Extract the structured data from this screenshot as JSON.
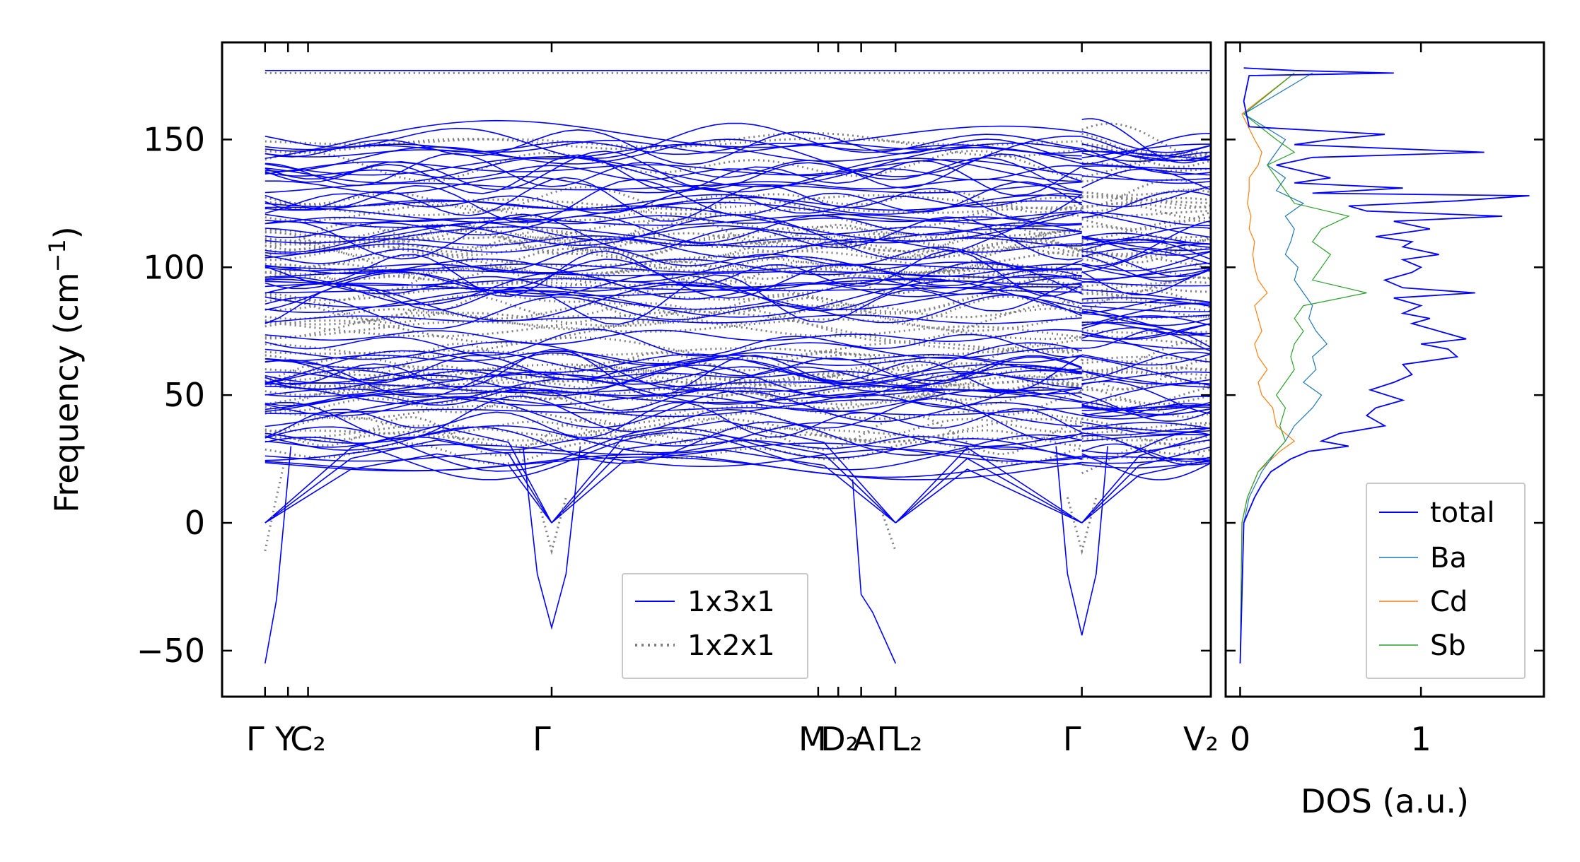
{
  "colors": {
    "band_3x": "#0000ff",
    "band_2x": "#7f7f7f",
    "dos_total": "#0000ff",
    "dos_Ba": "#1f77b4",
    "dos_Cd": "#ff7f0e",
    "dos_Sb": "#2ca02c"
  },
  "chart_data": [
    {
      "type": "line",
      "ylabel": "Frequency (cm⁻¹)",
      "ylim": [
        -68,
        188
      ],
      "yticks": [
        -50,
        0,
        50,
        100,
        150
      ],
      "ytick_labels": [
        "−50",
        "0",
        "50",
        "100",
        "150"
      ],
      "xlim": [
        -0.15,
        3.3
      ],
      "path_segments": [
        [
          0,
          2.85
        ],
        [
          2.85,
          3.3
        ]
      ],
      "high_symmetry_points": [
        {
          "x": 0.0,
          "label": "Γ"
        },
        {
          "x": 0.08,
          "label": "Y"
        },
        {
          "x": 0.15,
          "label": "C₂"
        },
        {
          "x": 1.0,
          "label": "Γ"
        },
        {
          "x": 1.93,
          "label": "M"
        },
        {
          "x": 2.0,
          "label": "D₂"
        },
        {
          "x": 2.08,
          "label": "A"
        },
        {
          "x": 2.2,
          "label": "Γ"
        },
        {
          "x": 2.2,
          "label": "L₂"
        },
        {
          "x": 2.85,
          "label": "Γ"
        },
        {
          "x": 3.3,
          "label": "V₂"
        }
      ],
      "xtick_labels": [
        "Γ",
        "Y",
        "C₂",
        "Γ",
        "M",
        "D₂",
        "A",
        "Γ",
        "L₂",
        "Γ",
        "V₂"
      ],
      "legend": [
        "1x3x1",
        "1x2x1"
      ],
      "series": [
        {
          "name": "1x3x1",
          "style": "solid",
          "acoustic": [
            {
              "x": [
                0,
                0.3,
                0.6,
                0.85,
                1.0
              ],
              "y": [
                0,
                28,
                36,
                30,
                0
              ]
            },
            {
              "x": [
                1.0,
                1.25,
                1.6,
                1.95,
                2.2
              ],
              "y": [
                0,
                32,
                38,
                30,
                0
              ]
            },
            {
              "x": [
                2.2,
                2.45,
                2.85
              ],
              "y": [
                0,
                28,
                0
              ]
            },
            {
              "x": [
                2.85,
                3.05,
                3.3
              ],
              "y": [
                0,
                25,
                33
              ]
            }
          ],
          "soft_modes": [
            {
              "x": [
                0.0,
                0.04,
                0.09
              ],
              "y": [
                -55,
                -30,
                30
              ]
            },
            {
              "x": [
                0.9,
                0.95,
                1.0,
                1.05,
                1.1
              ],
              "y": [
                30,
                -20,
                -41,
                -20,
                30
              ]
            },
            {
              "x": [
                2.05,
                2.08,
                2.12,
                2.16,
                2.2
              ],
              "y": [
                17,
                -28,
                -35,
                -45,
                -55
              ]
            },
            {
              "x": [
                2.76,
                2.8,
                2.85,
                2.9,
                2.94
              ],
              "y": [
                30,
                -20,
                -44,
                -20,
                30
              ]
            }
          ],
          "top_band": {
            "y": 177
          }
        },
        {
          "name": "1x2x1",
          "style": "dotted",
          "soft_modes": [
            {
              "x": [
                0.0,
                0.03,
                0.07
              ],
              "y": [
                -11,
                5,
                25
              ]
            },
            {
              "x": [
                0.95,
                1.0,
                1.05
              ],
              "y": [
                10,
                -11,
                10
              ]
            },
            {
              "x": [
                2.15,
                2.2
              ],
              "y": [
                5,
                -11
              ]
            },
            {
              "x": [
                2.8,
                2.85,
                2.9
              ],
              "y": [
                10,
                -11,
                10
              ]
            }
          ],
          "top_band": {
            "y": 176
          }
        }
      ],
      "note_bands": "dense optical bands between ~20 and 153 cm⁻¹"
    },
    {
      "type": "line",
      "xlabel": "DOS (a.u.)",
      "xlim": [
        -0.08,
        1.68
      ],
      "ylim": [
        -68,
        188
      ],
      "xticks": [
        0,
        1
      ],
      "xtick_labels": [
        "0",
        "1"
      ],
      "legend": [
        "total",
        "Ba",
        "Cd",
        "Sb"
      ],
      "series": [
        {
          "name": "total",
          "frequency": [
            -55,
            0,
            5,
            10,
            15,
            20,
            25,
            28,
            30,
            32,
            35,
            38,
            42,
            45,
            48,
            52,
            55,
            58,
            62,
            65,
            68,
            70,
            72,
            75,
            78,
            80,
            82,
            85,
            88,
            90,
            92,
            95,
            98,
            100,
            103,
            105,
            108,
            110,
            112,
            115,
            118,
            120,
            122,
            124,
            126,
            128,
            129,
            131,
            133,
            135,
            140,
            143,
            145,
            148,
            150,
            152,
            155,
            165,
            175,
            176,
            177,
            178
          ],
          "values": [
            0,
            0.02,
            0.05,
            0.08,
            0.12,
            0.17,
            0.28,
            0.38,
            0.6,
            0.45,
            0.55,
            0.8,
            0.7,
            0.75,
            0.9,
            0.72,
            0.85,
            0.95,
            0.9,
            1.2,
            1.15,
            1.0,
            1.25,
            1.1,
            0.95,
            1.05,
            0.9,
            1.0,
            0.85,
            1.3,
            0.9,
            0.8,
            0.95,
            1.0,
            0.9,
            1.1,
            0.9,
            0.95,
            0.75,
            1.05,
            0.85,
            1.45,
            0.7,
            0.6,
            1.2,
            1.6,
            0.4,
            0.9,
            0.3,
            0.5,
            0.2,
            0.4,
            1.35,
            0.3,
            0.5,
            0.8,
            0.05,
            0.02,
            0.05,
            0.85,
            0.3,
            0.02
          ]
        },
        {
          "name": "Ba",
          "frequency": [
            -55,
            0,
            10,
            20,
            28,
            32,
            38,
            45,
            50,
            55,
            60,
            65,
            70,
            75,
            80,
            85,
            90,
            95,
            100,
            105,
            110,
            115,
            120,
            125,
            130,
            135,
            140,
            145,
            150,
            160,
            176
          ],
          "values": [
            0,
            0.02,
            0.05,
            0.12,
            0.2,
            0.25,
            0.3,
            0.4,
            0.45,
            0.35,
            0.42,
            0.4,
            0.48,
            0.42,
            0.38,
            0.4,
            0.35,
            0.3,
            0.32,
            0.25,
            0.28,
            0.3,
            0.25,
            0.35,
            0.2,
            0.25,
            0.15,
            0.2,
            0.25,
            0.02,
            0.4
          ]
        },
        {
          "name": "Cd",
          "frequency": [
            -55,
            0,
            10,
            20,
            28,
            32,
            38,
            45,
            50,
            55,
            60,
            65,
            70,
            75,
            80,
            85,
            90,
            95,
            100,
            105,
            110,
            115,
            120,
            125,
            130,
            135,
            140,
            145,
            150,
            160,
            176
          ],
          "values": [
            0,
            0.01,
            0.04,
            0.1,
            0.22,
            0.3,
            0.2,
            0.18,
            0.12,
            0.1,
            0.15,
            0.1,
            0.08,
            0.12,
            0.1,
            0.08,
            0.15,
            0.1,
            0.08,
            0.07,
            0.08,
            0.05,
            0.06,
            0.04,
            0.05,
            0.05,
            0.1,
            0.12,
            0.08,
            0.01,
            0.3
          ]
        },
        {
          "name": "Sb",
          "frequency": [
            -55,
            0,
            10,
            20,
            28,
            32,
            38,
            45,
            50,
            55,
            60,
            65,
            70,
            75,
            80,
            85,
            90,
            95,
            100,
            105,
            110,
            115,
            120,
            125,
            130,
            135,
            140,
            145,
            150,
            160,
            176
          ],
          "values": [
            0,
            0.01,
            0.04,
            0.1,
            0.2,
            0.25,
            0.22,
            0.25,
            0.2,
            0.25,
            0.3,
            0.28,
            0.3,
            0.35,
            0.3,
            0.35,
            0.7,
            0.4,
            0.45,
            0.5,
            0.4,
            0.45,
            0.6,
            0.3,
            0.25,
            0.2,
            0.15,
            0.3,
            0.2,
            0.02,
            0.3
          ]
        }
      ]
    }
  ]
}
